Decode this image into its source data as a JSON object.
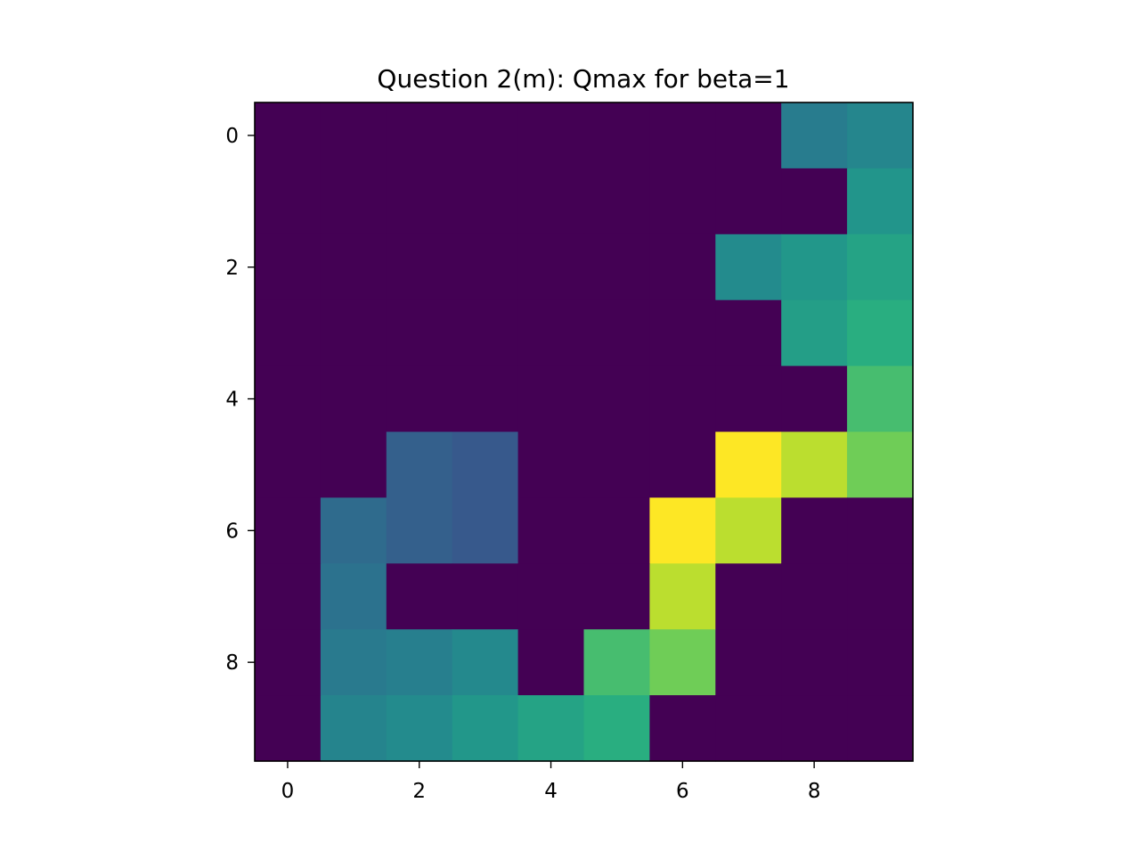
{
  "chart_data": {
    "type": "heatmap",
    "title": "Question 2(m): Qmax for beta=1",
    "xlabel": "",
    "ylabel": "",
    "rows": 10,
    "cols": 10,
    "x_ticks": [
      0,
      2,
      4,
      6,
      8
    ],
    "y_ticks": [
      0,
      2,
      4,
      6,
      8
    ],
    "x_tick_labels": [
      "0",
      "2",
      "4",
      "6",
      "8"
    ],
    "y_tick_labels": [
      "0",
      "2",
      "4",
      "6",
      "8"
    ],
    "colormap": "viridis",
    "vmin": 0,
    "vmax": 1,
    "grid": false,
    "values": [
      [
        0,
        0,
        0,
        0,
        0,
        0,
        0,
        0,
        0.42,
        0.46
      ],
      [
        0,
        0,
        0,
        0,
        0,
        0,
        0,
        0,
        0,
        0.52
      ],
      [
        0,
        0,
        0,
        0,
        0,
        0,
        0,
        0.48,
        0.53,
        0.58
      ],
      [
        0,
        0,
        0,
        0,
        0,
        0,
        0,
        0,
        0.56,
        0.63
      ],
      [
        0,
        0,
        0,
        0,
        0,
        0,
        0,
        0,
        0,
        0.7
      ],
      [
        0,
        0,
        0.31,
        0.28,
        0,
        0,
        0,
        1.0,
        0.9,
        0.78
      ],
      [
        0,
        0.35,
        0.31,
        0.28,
        0,
        0,
        1.0,
        0.9,
        0,
        0
      ],
      [
        0,
        0.38,
        0,
        0,
        0,
        0,
        0.9,
        0,
        0,
        0
      ],
      [
        0,
        0.41,
        0.43,
        0.47,
        0,
        0.7,
        0.78,
        0,
        0,
        0
      ],
      [
        0,
        0.45,
        0.48,
        0.53,
        0.58,
        0.63,
        0,
        0,
        0,
        0
      ]
    ]
  }
}
